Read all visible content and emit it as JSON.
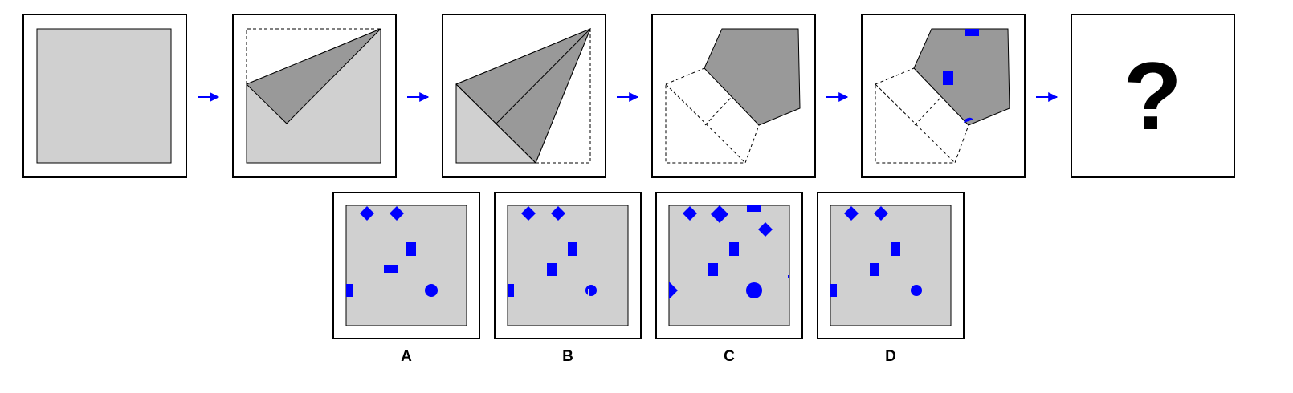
{
  "colors": {
    "paper": "#d0d0d0",
    "fold": "#999999",
    "mark": "#0000ff",
    "frame": "#000000",
    "background": "#ffffff"
  },
  "sequence": {
    "step_count": 6,
    "arrow_count": 5,
    "question": "?"
  },
  "options": {
    "labels": [
      "A",
      "B",
      "C",
      "D"
    ]
  }
}
